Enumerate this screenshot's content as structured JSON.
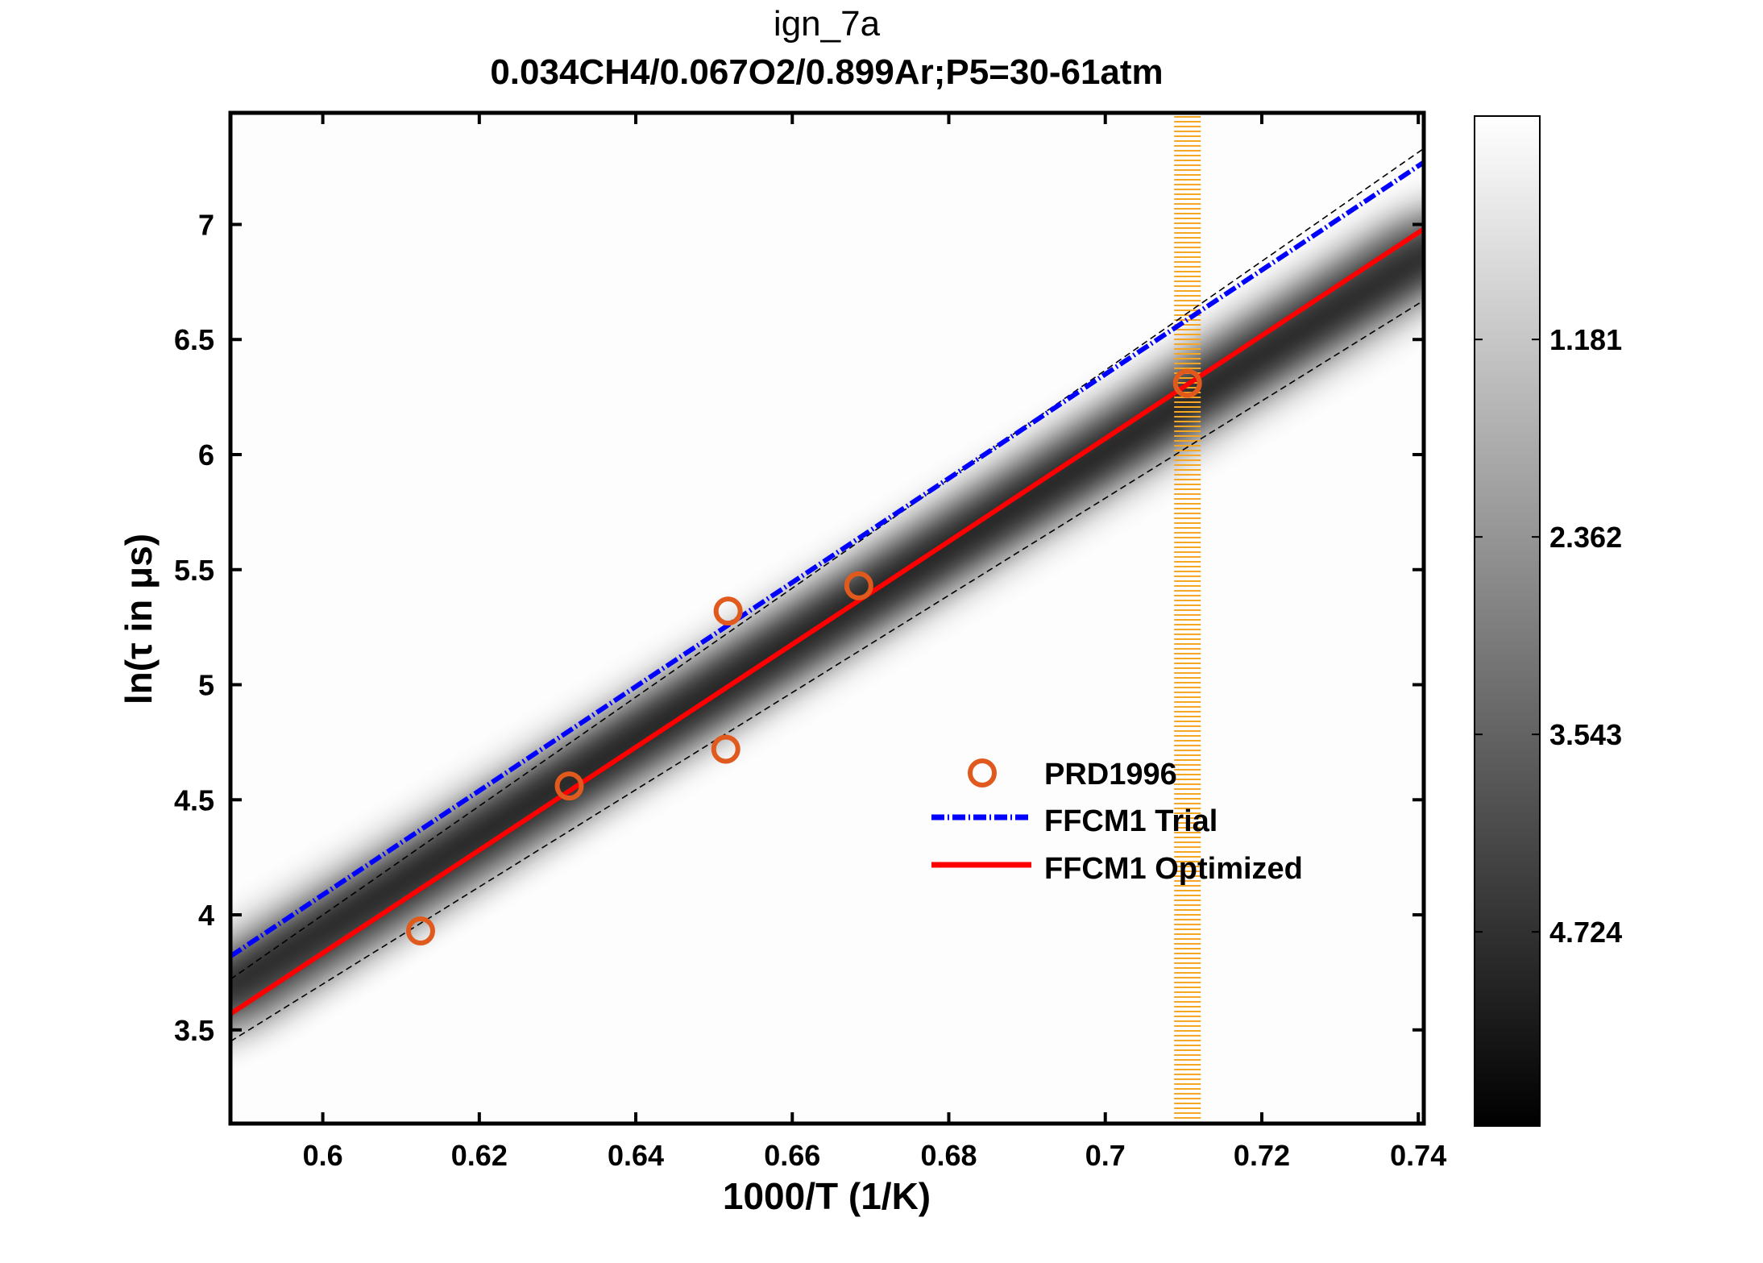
{
  "chart_data": {
    "type": "scatter",
    "title": "ign_7a",
    "subtitle": "0.034CH4/0.067O2/0.899Ar;P5=30-61atm",
    "xlabel": "1000/T (1/K)",
    "ylabel": "ln(τ in μs)",
    "xlim": [
      0.5882,
      0.7407
    ],
    "ylim": [
      3.093,
      7.485
    ],
    "xticks": [
      0.6,
      0.62,
      0.64,
      0.66,
      0.68,
      0.7,
      0.72,
      0.74
    ],
    "xtick_labels": [
      "0.6",
      "0.62",
      "0.64",
      "0.66",
      "0.68",
      "0.7",
      "0.72",
      "0.74"
    ],
    "yticks": [
      3.5,
      4,
      4.5,
      5,
      5.5,
      6,
      6.5,
      7
    ],
    "ytick_labels": [
      "3.5",
      "4",
      "4.5",
      "5",
      "5.5",
      "6",
      "6.5",
      "7"
    ],
    "legend_position": "center-right",
    "series": [
      {
        "name": "PRD1996",
        "kind": "marker",
        "color": "#E05A1E",
        "x": [
          0.6125,
          0.6315,
          0.6518,
          0.6515,
          0.6685,
          0.7105
        ],
        "y": [
          3.93,
          4.56,
          5.32,
          4.72,
          5.43,
          6.31
        ]
      },
      {
        "name": "FFCM1 Trial",
        "kind": "line",
        "style": "dashdot",
        "color": "#0000FF",
        "x": [
          0.5882,
          0.7407
        ],
        "y": [
          3.82,
          7.27
        ]
      },
      {
        "name": "FFCM1 Optimized",
        "kind": "line",
        "style": "solid",
        "color": "#FF0000",
        "x": [
          0.5882,
          0.7407
        ],
        "y": [
          3.57,
          6.98
        ]
      }
    ],
    "uncertainty_bounds": {
      "upper": {
        "x": [
          0.5882,
          0.7407
        ],
        "y": [
          3.72,
          7.33
        ]
      },
      "lower": {
        "x": [
          0.5882,
          0.7407
        ],
        "y": [
          3.45,
          6.67
        ]
      }
    },
    "highlight_band": {
      "x": [
        0.7088,
        0.7122
      ],
      "color": "#F5A623"
    },
    "colorbar": {
      "range": [
        -0.155,
        5.885
      ],
      "ticks": [
        1.181,
        2.362,
        3.543,
        4.724
      ],
      "tick_labels": [
        "1.181",
        "2.362",
        "3.543",
        "4.724"
      ]
    }
  }
}
